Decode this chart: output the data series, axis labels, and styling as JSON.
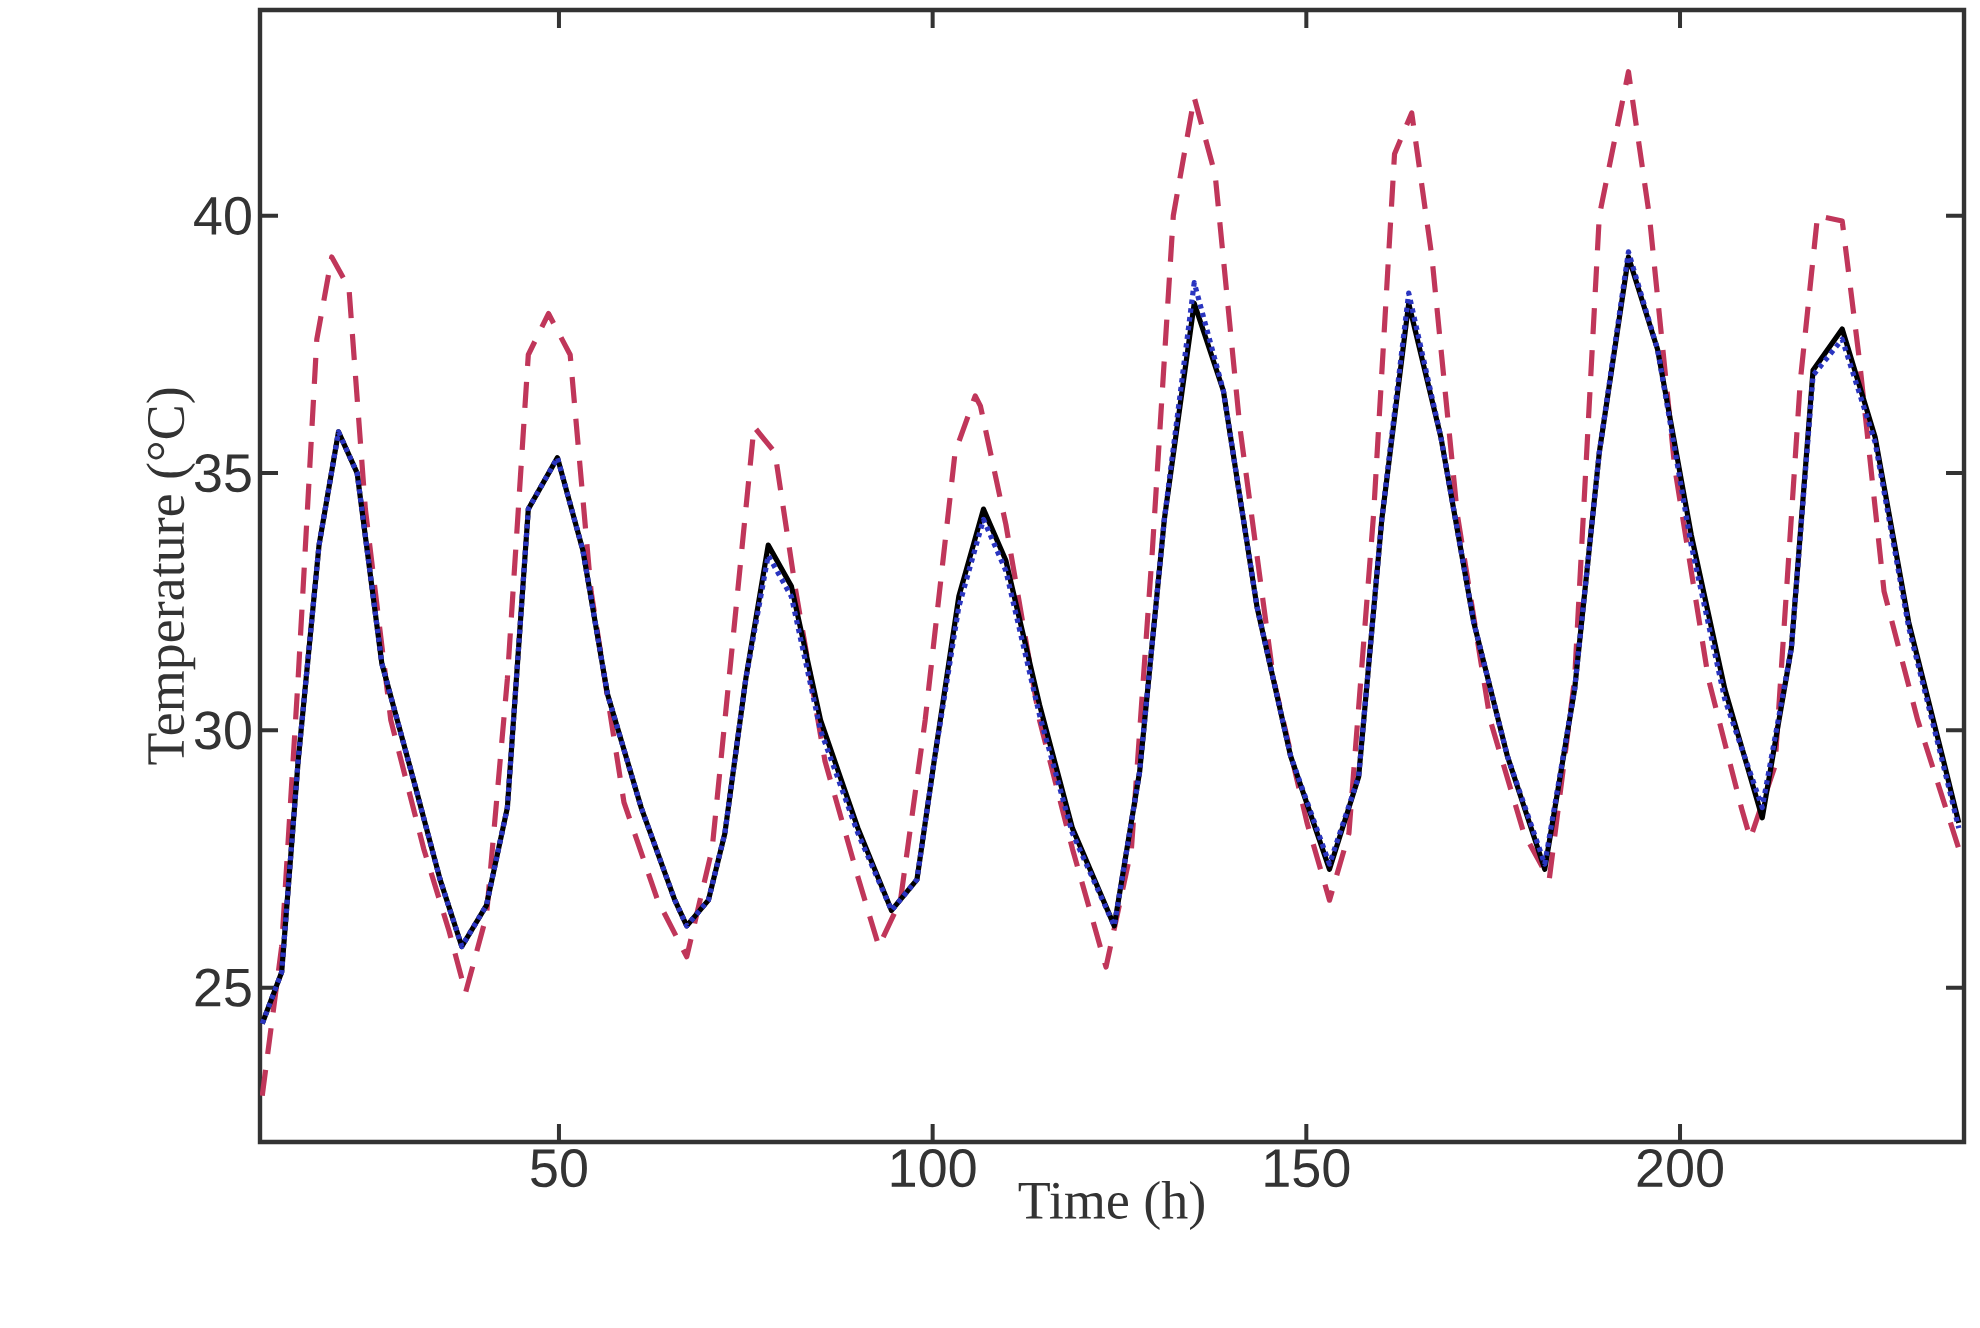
{
  "chart_data": {
    "type": "line",
    "xlabel": "Time (h)",
    "ylabel": "Temperature (°C)",
    "xlim": [
      10,
      238
    ],
    "ylim": [
      22,
      44
    ],
    "xticks": [
      50,
      100,
      150,
      200
    ],
    "yticks": [
      25,
      30,
      35,
      40
    ],
    "series": [
      {
        "color": "#c0365a",
        "line_style": "dashed",
        "x": [
          10.3,
          12.9,
          15.1,
          17.6,
          19.6,
          21.9,
          24.1,
          27.5,
          31.9,
          35.3,
          37.5,
          40.3,
          43.1,
          45.9,
          48.6,
          51.5,
          54.3,
          58.7,
          63.2,
          67.1,
          70.5,
          73.3,
          76.1,
          78.9,
          81.7,
          85.6,
          90.1,
          92.8,
          95.7,
          99,
          103,
          105.7,
          106.4,
          109.8,
          114.3,
          118.7,
          123.2,
          126.6,
          129.4,
          132.2,
          135,
          137.8,
          141.1,
          145.6,
          150.1,
          153.1,
          155.7,
          159,
          161.8,
          164.1,
          166.8,
          170.2,
          174.6,
          179.1,
          182.5,
          185.9,
          189.2,
          193.1,
          195.9,
          199.3,
          203.8,
          208.2,
          209.4,
          212.7,
          216.1,
          218.4,
          221.7,
          224,
          227.3,
          231.8,
          237.3
        ],
        "values": [
          22.9,
          25.8,
          31,
          37.6,
          39.2,
          38.6,
          34.3,
          30.2,
          27.7,
          26.1,
          24.9,
          26.4,
          31,
          37.3,
          38.1,
          37.3,
          32.7,
          28.6,
          26.7,
          25.6,
          27.7,
          31.8,
          35.9,
          35.4,
          32.7,
          29.4,
          27.1,
          25.8,
          26.7,
          30.2,
          35.4,
          36.5,
          36.3,
          34,
          30.2,
          27.7,
          25.4,
          27.7,
          33.5,
          40,
          42.3,
          40.8,
          35.9,
          31,
          28.2,
          26.7,
          28,
          34.2,
          41.2,
          42,
          39.2,
          34.2,
          30.2,
          28,
          27.1,
          31,
          40,
          42.8,
          40,
          35.1,
          31,
          28.5,
          27.9,
          29.3,
          36.8,
          40,
          39.9,
          37.2,
          32.7,
          30.2,
          27.7
        ]
      },
      {
        "color": "#2a35c0",
        "line_style": "dotted",
        "x": [
          10.3,
          12.9,
          15.1,
          17.9,
          20.5,
          23,
          26.3,
          30.8,
          34.1,
          37,
          40.3,
          43.1,
          45.9,
          49.8,
          53.2,
          56.5,
          61,
          65.5,
          67.1,
          70,
          72.2,
          75,
          78,
          81.1,
          85,
          90,
          94.5,
          97.9,
          100.2,
          103.5,
          106.8,
          109.8,
          114.3,
          118.7,
          124.3,
          127.7,
          131,
          135,
          138.9,
          143.4,
          147.9,
          153.1,
          157,
          160.1,
          163.7,
          168,
          172.4,
          176.9,
          181.9,
          185.9,
          189.2,
          193.1,
          197,
          201.5,
          206,
          211,
          214.9,
          217.8,
          221.7,
          226.1,
          230.6,
          235.1,
          237.3
        ],
        "values": [
          24.3,
          25.3,
          29.4,
          33.6,
          35.8,
          35,
          31.3,
          28.9,
          27.1,
          25.8,
          26.6,
          28.5,
          34.3,
          35.3,
          33.5,
          30.7,
          28.5,
          26.7,
          26.2,
          26.7,
          28,
          31,
          33.4,
          32.6,
          30,
          28,
          26.5,
          27.1,
          29.4,
          32.4,
          34.1,
          33.1,
          30.3,
          28,
          26.2,
          29.2,
          34.1,
          38.7,
          36.6,
          32.4,
          29.5,
          27.4,
          29.1,
          34.1,
          38.5,
          35.7,
          32.1,
          29.5,
          27.4,
          30.8,
          35.4,
          39.3,
          37.4,
          33.6,
          30.6,
          28.5,
          31.6,
          36.9,
          37.6,
          35.6,
          32,
          29.4,
          28.1
        ]
      },
      {
        "color": "#000000",
        "line_style": "solid",
        "x": [
          10.3,
          12.9,
          15.1,
          17.9,
          20.5,
          23,
          26.3,
          30.8,
          34.1,
          37,
          40.3,
          43.1,
          45.9,
          49.8,
          53.2,
          56.5,
          61,
          65.5,
          67.1,
          70,
          72.2,
          75,
          78,
          81.1,
          85,
          90,
          94.5,
          97.9,
          100.2,
          103.5,
          106.8,
          109.8,
          114.3,
          118.7,
          124.3,
          127.7,
          131,
          135,
          138.9,
          143.4,
          147.9,
          153.1,
          157,
          160.1,
          163.7,
          168,
          172.4,
          176.9,
          181.9,
          185.9,
          189.2,
          193.1,
          197,
          201.5,
          206,
          211,
          214.9,
          217.8,
          221.7,
          226.1,
          230.6,
          235.1,
          237.3
        ],
        "values": [
          24.3,
          25.3,
          29.4,
          33.6,
          35.8,
          35,
          31.3,
          28.9,
          27.1,
          25.8,
          26.6,
          28.5,
          34.3,
          35.3,
          33.5,
          30.7,
          28.5,
          26.7,
          26.2,
          26.7,
          28,
          31,
          33.6,
          32.8,
          30.2,
          28.1,
          26.5,
          27.1,
          29.4,
          32.6,
          34.3,
          33.3,
          30.5,
          28.1,
          26.2,
          29.2,
          34.1,
          38.3,
          36.6,
          32.4,
          29.5,
          27.3,
          29.1,
          34.1,
          38.3,
          35.7,
          32.1,
          29.5,
          27.3,
          30.8,
          35.4,
          39.2,
          37.4,
          33.8,
          30.8,
          28.3,
          31.6,
          37,
          37.8,
          35.7,
          32.1,
          29.5,
          28.2
        ]
      }
    ]
  }
}
